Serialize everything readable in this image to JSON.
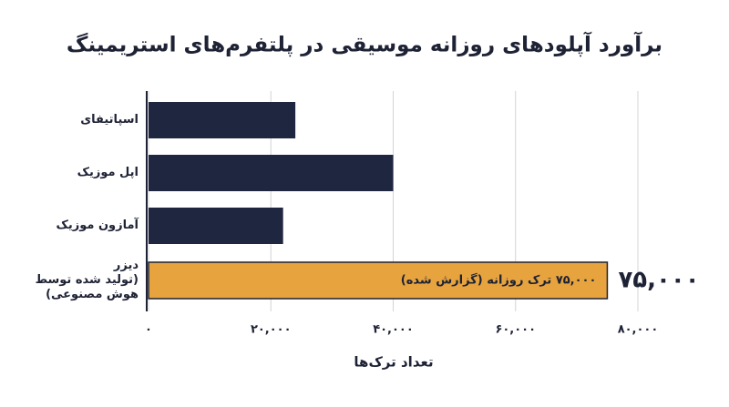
{
  "chart_data": {
    "type": "bar",
    "orientation": "horizontal",
    "title": "برآورد آپلودهای روزانه موسیقی در پلتفرم‌های استریمینگ",
    "x_label": "تعداد ترک‌ها",
    "categories": [
      "اسپاتیفای",
      "اپل موزیک",
      "آمازون موزیک",
      "دیزر\n(تولید شده توسط\nهوش مصنوعی)"
    ],
    "values": [
      24000,
      40000,
      22000,
      75000
    ],
    "value_labels": [
      null,
      null,
      null,
      "۷۵,۰۰۰"
    ],
    "colors": [
      "#1f2640",
      "#1f2640",
      "#1f2640",
      "#e6a33e"
    ],
    "annotation": "۷۵,۰۰۰ ترک روزانه (گزارش شده)",
    "xlim": [
      0,
      80000
    ],
    "xticks": [
      {
        "value": 0,
        "label": "۰"
      },
      {
        "value": 20000,
        "label": "۲۰,۰۰۰"
      },
      {
        "value": 40000,
        "label": "۴۰,۰۰۰"
      },
      {
        "value": 60000,
        "label": "۶۰,۰۰۰"
      },
      {
        "value": 80000,
        "label": "۸۰,۰۰۰"
      }
    ],
    "grid": true
  }
}
